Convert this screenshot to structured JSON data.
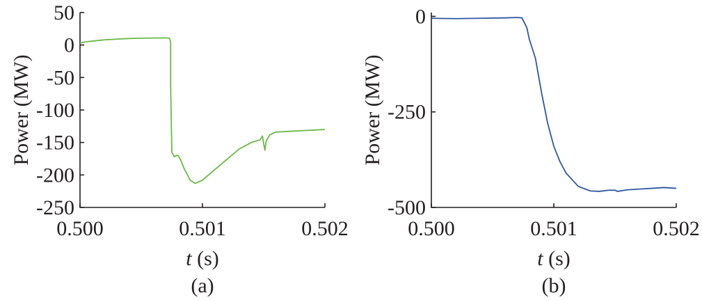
{
  "chart_data": [
    {
      "type": "line",
      "panel_label": "(a)",
      "xlabel_italic": "t",
      "xlabel_unit": " (s)",
      "ylabel": "Power (MW)",
      "xlim": [
        0.5,
        0.502
      ],
      "ylim": [
        -250,
        50
      ],
      "xticks": [
        0.5,
        0.501,
        0.502
      ],
      "xtick_labels": [
        "0.500",
        "0.501",
        "0.502"
      ],
      "yticks": [
        50,
        0,
        -50,
        -100,
        -150,
        -200,
        -250
      ],
      "ytick_labels": [
        "50",
        "0",
        "-50",
        "-100",
        "-150",
        "-200",
        "-250"
      ],
      "grid": false,
      "series": [
        {
          "color": "#6ab945",
          "x": [
            0.5,
            0.50005,
            0.5001,
            0.5002,
            0.5003,
            0.5004,
            0.5005,
            0.5006,
            0.5007,
            0.50073,
            0.50074,
            0.50074,
            0.50075,
            0.50077,
            0.50079,
            0.5008,
            0.50082,
            0.50085,
            0.5009,
            0.50094,
            0.501,
            0.5011,
            0.5012,
            0.5013,
            0.5014,
            0.50147,
            0.50149,
            0.5015,
            0.50151,
            0.50152,
            0.50155,
            0.5016,
            0.5017,
            0.5018,
            0.5019,
            0.502
          ],
          "y": [
            3,
            5,
            6,
            8,
            9,
            10,
            10.5,
            10.8,
            11,
            10.5,
            5,
            -60,
            -165,
            -172,
            -170,
            -170,
            -176,
            -190,
            -208,
            -213,
            -208,
            -192,
            -176,
            -160,
            -150,
            -146,
            -140,
            -152,
            -162,
            -148,
            -138,
            -134,
            -133,
            -132,
            -131,
            -130
          ]
        }
      ]
    },
    {
      "type": "line",
      "panel_label": "(b)",
      "xlabel_italic": "t",
      "xlabel_unit": " (s)",
      "ylabel": "Power (MW)",
      "xlim": [
        0.5,
        0.502
      ],
      "ylim": [
        -500,
        10
      ],
      "xticks": [
        0.5,
        0.501,
        0.502
      ],
      "xtick_labels": [
        "0.500",
        "0.501",
        "0.502"
      ],
      "yticks": [
        0,
        -250,
        -500
      ],
      "ytick_labels": [
        "0",
        "-250",
        "-500"
      ],
      "grid": false,
      "series": [
        {
          "color": "#2d58a0",
          "x": [
            0.5,
            0.5002,
            0.5004,
            0.5006,
            0.5007,
            0.50074,
            0.50078,
            0.5008,
            0.50085,
            0.5009,
            0.50095,
            0.501,
            0.50105,
            0.5011,
            0.5012,
            0.5013,
            0.50137,
            0.50145,
            0.5015,
            0.50152,
            0.5016,
            0.5017,
            0.5018,
            0.5019,
            0.502
          ],
          "y": [
            -5,
            -6,
            -5,
            -4,
            -3,
            -4,
            -30,
            -60,
            -110,
            -200,
            -280,
            -340,
            -380,
            -410,
            -445,
            -457,
            -458,
            -455,
            -455,
            -458,
            -454,
            -452,
            -450,
            -448,
            -450
          ]
        }
      ]
    }
  ]
}
